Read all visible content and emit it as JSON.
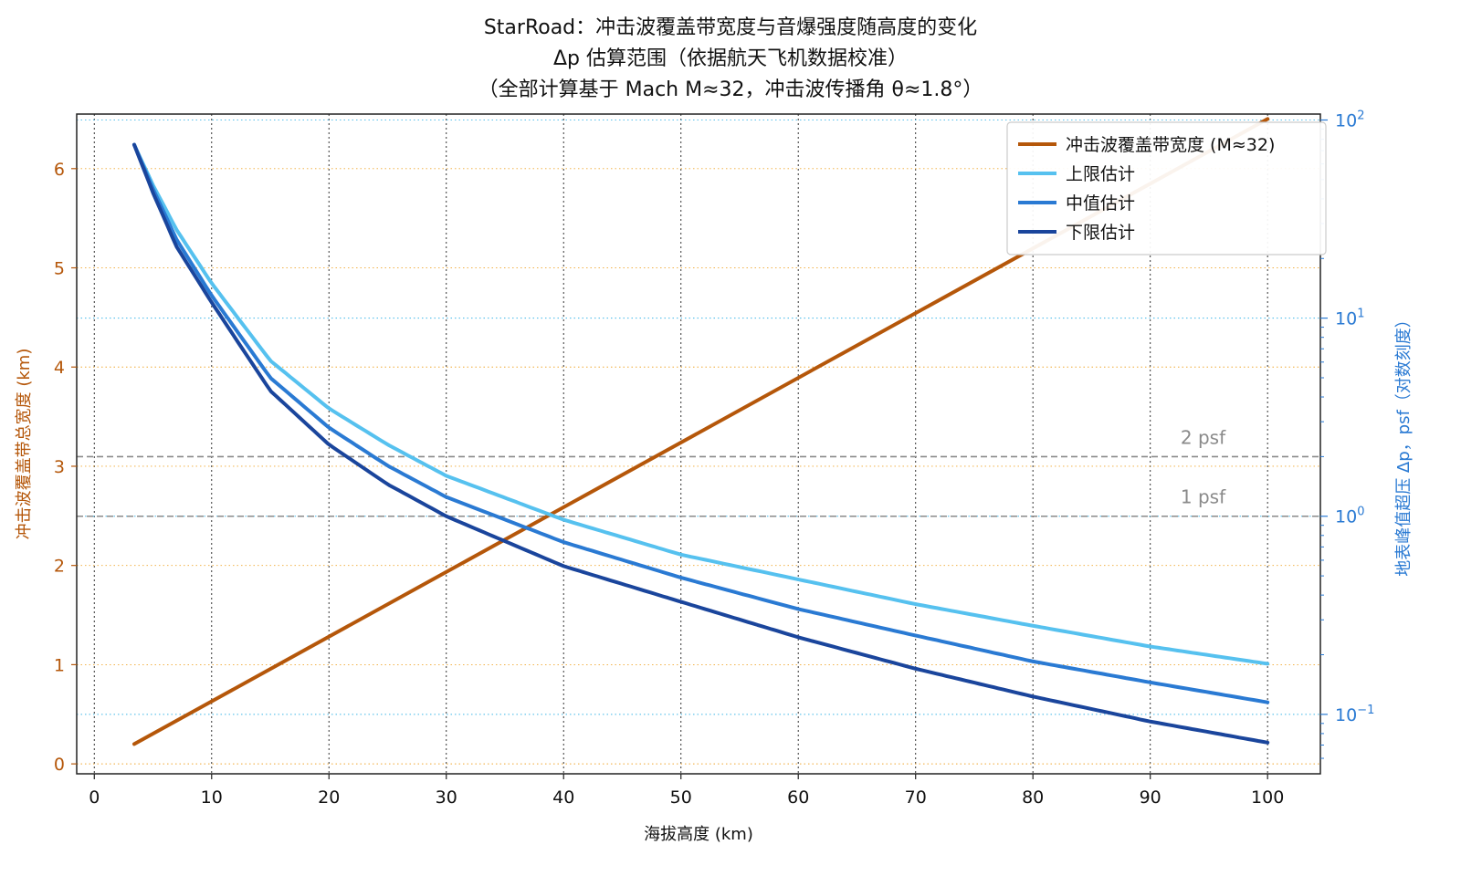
{
  "chart_data": {
    "type": "line",
    "title": [
      "StarRoad：冲击波覆盖带宽度与音爆强度随高度的变化",
      "Δp 估算范围（依据航天飞机数据校准）",
      "（全部计算基于 Mach M≈32，冲击波传播角 θ≈1.8°）"
    ],
    "xlabel": "海拔高度 (km)",
    "ylabel_left": "冲击波覆盖带总宽度 (km)",
    "ylabel_right": "地表峰值超压 Δp，psf（对数刻度）",
    "xlim": [
      -1.5,
      104.5
    ],
    "ylim_left": [
      -0.1,
      6.55
    ],
    "ylim_right_log10": [
      -1.3,
      2.03
    ],
    "x_ticks": [
      0,
      10,
      20,
      30,
      40,
      50,
      60,
      70,
      80,
      90,
      100
    ],
    "y_left_ticks": [
      0,
      1,
      2,
      3,
      4,
      5,
      6
    ],
    "y_right_ticks": [
      {
        "value": 0.1,
        "base": "10",
        "exp": "−1"
      },
      {
        "value": 1,
        "base": "10",
        "exp": "0"
      },
      {
        "value": 10,
        "base": "10",
        "exp": "1"
      },
      {
        "value": 100,
        "base": "10",
        "exp": "2"
      }
    ],
    "grid": true,
    "legend_position": "top-right",
    "colors": {
      "width": "#b5570a",
      "upper": "#56c1ef",
      "median": "#2a7ad3",
      "lower": "#1a459c",
      "left_axis": "#b5570a",
      "right_axis": "#2a7ad3",
      "reference": "#8a8a8a"
    },
    "reference_lines": [
      {
        "label": "2 psf",
        "value": 2
      },
      {
        "label": "1 psf",
        "value": 1
      }
    ],
    "series": [
      {
        "key": "width",
        "name": "冲击波覆盖带宽度 (M≈32)",
        "axis": "left",
        "x": [
          3.4,
          100
        ],
        "y": [
          0.2,
          6.5
        ]
      },
      {
        "key": "upper",
        "name": "上限估计",
        "axis": "right",
        "x": [
          3.4,
          5,
          7,
          10,
          15,
          20,
          25,
          30,
          40,
          50,
          60,
          70,
          80,
          90,
          100
        ],
        "y": [
          75,
          47,
          28,
          15,
          6.1,
          3.5,
          2.3,
          1.6,
          0.96,
          0.64,
          0.48,
          0.36,
          0.28,
          0.22,
          0.18
        ]
      },
      {
        "key": "median",
        "name": "中值估计",
        "axis": "right",
        "x": [
          3.4,
          5,
          7,
          10,
          15,
          20,
          25,
          30,
          40,
          50,
          60,
          70,
          80,
          90,
          100
        ],
        "y": [
          75,
          45,
          25,
          13,
          5.0,
          2.8,
          1.8,
          1.25,
          0.74,
          0.49,
          0.34,
          0.25,
          0.185,
          0.145,
          0.115
        ]
      },
      {
        "key": "lower",
        "name": "下限估计",
        "axis": "right",
        "x": [
          3.4,
          5,
          7,
          10,
          15,
          20,
          25,
          30,
          40,
          50,
          60,
          70,
          80,
          90,
          100
        ],
        "y": [
          75,
          43,
          23,
          12,
          4.3,
          2.3,
          1.45,
          1.0,
          0.56,
          0.37,
          0.245,
          0.17,
          0.123,
          0.092,
          0.072
        ]
      }
    ]
  }
}
